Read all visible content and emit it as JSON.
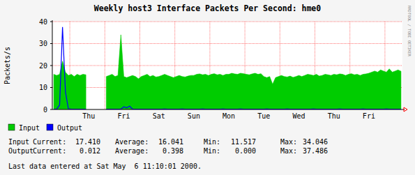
{
  "chart_data": {
    "type": "area",
    "title": "Weekly host3 Interface Packets Per Second: hme0",
    "y_label": "Packets/s",
    "categories": [
      null,
      null,
      null,
      null,
      null,
      null,
      null,
      null,
      null,
      null,
      null,
      null,
      "Thu",
      null,
      null,
      null,
      null,
      null,
      null,
      null,
      null,
      null,
      null,
      null,
      "Fri",
      null,
      null,
      null,
      null,
      null,
      null,
      null,
      null,
      null,
      null,
      null,
      "Sat",
      null,
      null,
      null,
      null,
      null,
      null,
      null,
      null,
      null,
      null,
      null,
      "Sun",
      null,
      null,
      null,
      null,
      null,
      null,
      null,
      null,
      null,
      null,
      null,
      "Mon",
      null,
      null,
      null,
      null,
      null,
      null,
      null,
      null,
      null,
      null,
      null,
      "Tue",
      null,
      null,
      null,
      null,
      null,
      null,
      null,
      null,
      null,
      null,
      null,
      "Wed",
      null,
      null,
      null,
      null,
      null,
      null,
      null,
      null,
      null,
      null,
      null,
      "Thu",
      null,
      null,
      null,
      null,
      null,
      null,
      null,
      null,
      null,
      null,
      null,
      "Fri",
      null,
      null,
      null,
      null,
      null,
      null,
      null,
      null,
      null,
      null,
      null
    ],
    "series": [
      {
        "name": "Input",
        "color": "#00cc00",
        "type": "area",
        "values": [
          16,
          15.5,
          16,
          22,
          17,
          15.5,
          16,
          15,
          16,
          15.5,
          16,
          15.8,
          null,
          null,
          null,
          null,
          null,
          null,
          15,
          15.5,
          16,
          15,
          15.5,
          34,
          15,
          14.5,
          15,
          15.5,
          15,
          14,
          15,
          15.5,
          16,
          15,
          15.5,
          14.8,
          15,
          15.5,
          16,
          15.5,
          15,
          14.5,
          15,
          15.5,
          15,
          14.8,
          15.2,
          15.5,
          15.5,
          16,
          16.2,
          15.8,
          16,
          15.5,
          16,
          16.3,
          15.8,
          16,
          15.5,
          16,
          16,
          16.5,
          16.2,
          16,
          16.5,
          16.3,
          16,
          15.8,
          16.2,
          16.5,
          16,
          16.3,
          15,
          14.5,
          15,
          11.5,
          14.5,
          15,
          15.5,
          15,
          14.8,
          15.2,
          14.6,
          15,
          15.5,
          15,
          15.5,
          16,
          15.8,
          15.5,
          16,
          15.2,
          15.5,
          16,
          15.8,
          15.5,
          16,
          15.8,
          16.2,
          16,
          15.5,
          16,
          16.3,
          15.8,
          16,
          15.5,
          16,
          16.2,
          16.5,
          17,
          17.5,
          17,
          18,
          17.5,
          17,
          18.5,
          17,
          17.5,
          18,
          17.4
        ]
      },
      {
        "name": "Output",
        "color": "#0000ff",
        "type": "line",
        "values": [
          0.1,
          0.2,
          2,
          37.5,
          8,
          0.3,
          0.1,
          0.1,
          0.1,
          0.1,
          0.1,
          0.1,
          null,
          null,
          null,
          null,
          null,
          null,
          0.1,
          0.1,
          0.1,
          0.1,
          0.1,
          0.2,
          1.2,
          0.8,
          1.5,
          0.2,
          0.1,
          0.1,
          0.1,
          0.1,
          0.1,
          0.1,
          0.1,
          0.1,
          0.1,
          0.1,
          0.2,
          0.1,
          0.1,
          0.1,
          0.1,
          0.1,
          0.2,
          0.1,
          0.1,
          0.1,
          0.1,
          0.1,
          0.1,
          0.2,
          0.1,
          0.1,
          0.1,
          0.1,
          0.1,
          0.1,
          0.2,
          0.1,
          0.1,
          0.1,
          0.1,
          0.1,
          0.2,
          0.1,
          0.1,
          0.1,
          0.1,
          0.1,
          0.1,
          0.1,
          0.1,
          0.2,
          0.1,
          0.1,
          0.1,
          0.1,
          0.1,
          0.1,
          0.2,
          0.1,
          0.1,
          0.1,
          0.1,
          0.1,
          0.1,
          0.1,
          0.1,
          0.2,
          0.1,
          0.1,
          0.1,
          0.1,
          0.1,
          0.1,
          0.1,
          0.1,
          0.2,
          0.1,
          0.1,
          0.1,
          0.1,
          0.1,
          0.1,
          0.1,
          0.2,
          0.1,
          0.1,
          0.1,
          0.1,
          0.1,
          0.1,
          0.1,
          0.2,
          0.1,
          0.1,
          0.1,
          0.1,
          0.1
        ]
      }
    ],
    "ylim": [
      0,
      40
    ],
    "yticks": [
      0,
      10,
      20,
      30,
      40
    ],
    "grid": true,
    "legend": "bottom"
  },
  "stats": {
    "labels": [
      "Current:",
      "Average:",
      "Min:",
      "Max:"
    ],
    "rows": [
      {
        "name": "Input",
        "values": [
          "17.410",
          "16.041",
          "11.517",
          "34.046"
        ]
      },
      {
        "name": "Output",
        "values": [
          "0.012",
          "0.398",
          "0.000",
          "37.486"
        ]
      }
    ]
  },
  "footer": "Last data entered at Sat May  6 11:10:01 2000.",
  "watermark": "RRDTOOL / TOBI OETIKER"
}
